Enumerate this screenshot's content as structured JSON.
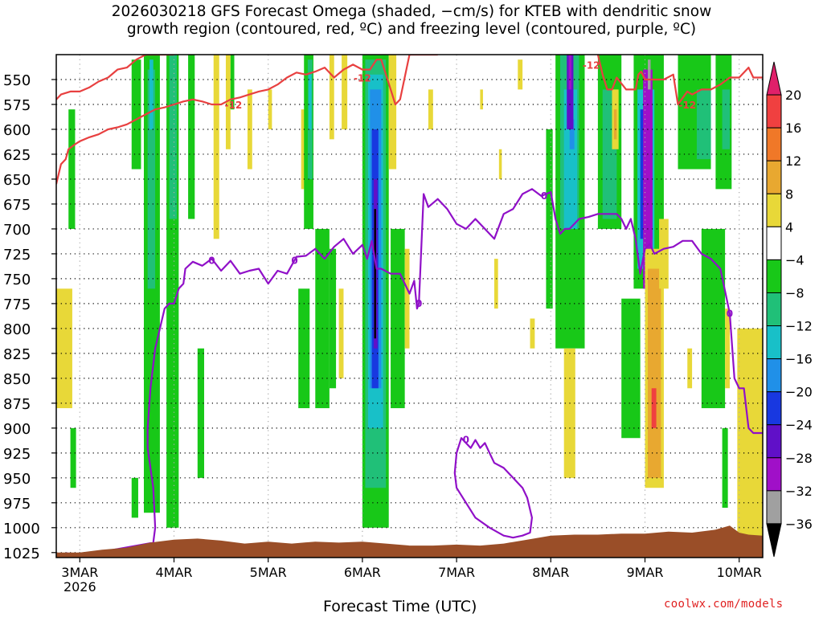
{
  "title": {
    "line1": "2026030218 GFS Forecast Omega (shaded, −cm/s) for KTEB with dendritic snow",
    "line2": "growth region (contoured, red, ºC) and freezing level (contoured, purple, ºC)"
  },
  "credit": "coolwx.com/models",
  "chart_data": {
    "type": "heatmap",
    "title": "2026030218 GFS Forecast Omega (shaded, −cm/s) for KTEB with dendritic snow growth region (contoured, red, ºC) and freezing level (contoured, purple, ºC)",
    "xlabel": "Forecast Time (UTC)",
    "ylabel": "",
    "x_ticks": [
      {
        "day": 3,
        "label": "3MAR",
        "sublabel": "2026"
      },
      {
        "day": 4,
        "label": "4MAR"
      },
      {
        "day": 5,
        "label": "5MAR"
      },
      {
        "day": 6,
        "label": "6MAR"
      },
      {
        "day": 7,
        "label": "7MAR"
      },
      {
        "day": 8,
        "label": "8MAR"
      },
      {
        "day": 9,
        "label": "9MAR"
      },
      {
        "day": 10,
        "label": "10MAR"
      }
    ],
    "xlim_days": [
      2.75,
      10.25
    ],
    "y_ticks": [
      550,
      575,
      600,
      625,
      650,
      675,
      700,
      725,
      750,
      775,
      800,
      825,
      850,
      875,
      900,
      925,
      950,
      975,
      1000,
      1025
    ],
    "ylim_hpa": [
      525,
      1030
    ],
    "colorbar": {
      "labels": [
        "20",
        "16",
        "12",
        "8",
        "4",
        "−4",
        "−8",
        "−12",
        "−16",
        "−20",
        "−24",
        "−28",
        "−32",
        "−36"
      ],
      "bins": [
        {
          "color": "#e0206a",
          "shape": "triangle-up",
          "range": ">20"
        },
        {
          "color": "#f04040",
          "range": "16 to 20"
        },
        {
          "color": "#f07828",
          "range": "12 to 16"
        },
        {
          "color": "#e8a830",
          "range": "8 to 12"
        },
        {
          "color": "#e8d838",
          "range": "4 to 8"
        },
        {
          "color": "#ffffff",
          "range": "-4 to 4"
        },
        {
          "color": "#18c818",
          "range": "-8 to -4"
        },
        {
          "color": "#20c078",
          "range": "-12 to -8"
        },
        {
          "color": "#18c0c8",
          "range": "-16 to -12"
        },
        {
          "color": "#2090e8",
          "range": "-20 to -16"
        },
        {
          "color": "#1838e0",
          "range": "-24 to -20"
        },
        {
          "color": "#6010c8",
          "range": "-28 to -24"
        },
        {
          "color": "#a010c8",
          "range": "-32 to -28"
        },
        {
          "color": "#a0a0a0",
          "range": "-36 to -32"
        },
        {
          "color": "#000000",
          "shape": "triangle-down",
          "range": "<-36"
        }
      ]
    },
    "contour_labels": {
      "dgz": "-12",
      "freezing": "0"
    },
    "shaded_regions": [
      {
        "value": -6,
        "t0": 2.88,
        "t1": 2.95,
        "p0": 580,
        "p1": 700
      },
      {
        "value": -6,
        "t0": 2.9,
        "t1": 2.96,
        "p0": 900,
        "p1": 960
      },
      {
        "value": 6,
        "t0": 2.75,
        "t1": 2.92,
        "p0": 760,
        "p1": 880
      },
      {
        "value": -6,
        "t0": 3.55,
        "t1": 3.65,
        "p0": 530,
        "p1": 640
      },
      {
        "value": -6,
        "t0": 3.55,
        "t1": 3.62,
        "p0": 950,
        "p1": 990
      },
      {
        "value": -6,
        "t0": 3.68,
        "t1": 3.85,
        "p0": 525,
        "p1": 985
      },
      {
        "value": -10,
        "t0": 3.72,
        "t1": 3.8,
        "p0": 540,
        "p1": 760
      },
      {
        "value": -14,
        "t0": 3.74,
        "t1": 3.78,
        "p0": 530,
        "p1": 600
      },
      {
        "value": -6,
        "t0": 3.92,
        "t1": 4.05,
        "p0": 525,
        "p1": 1000
      },
      {
        "value": -10,
        "t0": 3.95,
        "t1": 4.03,
        "p0": 525,
        "p1": 690
      },
      {
        "value": -6,
        "t0": 4.15,
        "t1": 4.22,
        "p0": 525,
        "p1": 690
      },
      {
        "value": -6,
        "t0": 4.25,
        "t1": 4.32,
        "p0": 820,
        "p1": 950
      },
      {
        "value": 6,
        "t0": 4.42,
        "t1": 4.48,
        "p0": 525,
        "p1": 710
      },
      {
        "value": 6,
        "t0": 4.55,
        "t1": 4.6,
        "p0": 525,
        "p1": 620
      },
      {
        "value": -6,
        "t0": 4.6,
        "t1": 4.64,
        "p0": 525,
        "p1": 580
      },
      {
        "value": 6,
        "t0": 4.78,
        "t1": 4.83,
        "p0": 560,
        "p1": 640
      },
      {
        "value": 6,
        "t0": 5.0,
        "t1": 5.04,
        "p0": 560,
        "p1": 600
      },
      {
        "value": -6,
        "t0": 5.32,
        "t1": 5.44,
        "p0": 760,
        "p1": 880
      },
      {
        "value": 6,
        "t0": 5.35,
        "t1": 5.4,
        "p0": 580,
        "p1": 660
      },
      {
        "value": -6,
        "t0": 5.38,
        "t1": 5.48,
        "p0": 525,
        "p1": 700
      },
      {
        "value": -10,
        "t0": 5.42,
        "t1": 5.47,
        "p0": 530,
        "p1": 650
      },
      {
        "value": -14,
        "t0": 5.43,
        "t1": 5.46,
        "p0": 545,
        "p1": 600
      },
      {
        "value": -6,
        "t0": 5.5,
        "t1": 5.65,
        "p0": 700,
        "p1": 880
      },
      {
        "value": -6,
        "t0": 5.65,
        "t1": 5.72,
        "p0": 720,
        "p1": 860
      },
      {
        "value": 6,
        "t0": 5.75,
        "t1": 5.8,
        "p0": 760,
        "p1": 850
      },
      {
        "value": 6,
        "t0": 5.65,
        "t1": 5.7,
        "p0": 525,
        "p1": 610
      },
      {
        "value": 6,
        "t0": 5.78,
        "t1": 5.84,
        "p0": 525,
        "p1": 600
      },
      {
        "value": -6,
        "t0": 6.0,
        "t1": 6.28,
        "p0": 525,
        "p1": 1000
      },
      {
        "value": -10,
        "t0": 6.03,
        "t1": 6.25,
        "p0": 530,
        "p1": 960
      },
      {
        "value": -14,
        "t0": 6.06,
        "t1": 6.22,
        "p0": 545,
        "p1": 900
      },
      {
        "value": -18,
        "t0": 6.08,
        "t1": 6.2,
        "p0": 560,
        "p1": 860
      },
      {
        "value": -22,
        "t0": 6.1,
        "t1": 6.17,
        "p0": 600,
        "p1": 860
      },
      {
        "value": -26,
        "t0": 6.12,
        "t1": 6.16,
        "p0": 650,
        "p1": 820
      },
      {
        "value": -38,
        "t0": 6.125,
        "t1": 6.145,
        "p0": 680,
        "p1": 810
      },
      {
        "value": 6,
        "t0": 6.28,
        "t1": 6.36,
        "p0": 525,
        "p1": 640
      },
      {
        "value": -6,
        "t0": 6.3,
        "t1": 6.45,
        "p0": 700,
        "p1": 880
      },
      {
        "value": 6,
        "t0": 6.45,
        "t1": 6.5,
        "p0": 720,
        "p1": 820
      },
      {
        "value": 6,
        "t0": 6.7,
        "t1": 6.75,
        "p0": 560,
        "p1": 600
      },
      {
        "value": 6,
        "t0": 7.25,
        "t1": 7.28,
        "p0": 560,
        "p1": 580
      },
      {
        "value": 6,
        "t0": 7.4,
        "t1": 7.44,
        "p0": 730,
        "p1": 780
      },
      {
        "value": 6,
        "t0": 7.45,
        "t1": 7.48,
        "p0": 620,
        "p1": 650
      },
      {
        "value": 6,
        "t0": 7.65,
        "t1": 7.7,
        "p0": 530,
        "p1": 560
      },
      {
        "value": 6,
        "t0": 7.78,
        "t1": 7.83,
        "p0": 790,
        "p1": 820
      },
      {
        "value": -6,
        "t0": 7.95,
        "t1": 8.02,
        "p0": 600,
        "p1": 780
      },
      {
        "value": -6,
        "t0": 8.05,
        "t1": 8.36,
        "p0": 525,
        "p1": 820
      },
      {
        "value": -10,
        "t0": 8.1,
        "t1": 8.3,
        "p0": 525,
        "p1": 700
      },
      {
        "value": -14,
        "t0": 8.14,
        "t1": 8.28,
        "p0": 560,
        "p1": 700
      },
      {
        "value": -18,
        "t0": 8.2,
        "t1": 8.25,
        "p0": 590,
        "p1": 620
      },
      {
        "value": -26,
        "t0": 8.17,
        "t1": 8.24,
        "p0": 525,
        "p1": 600
      },
      {
        "value": -30,
        "t0": 8.19,
        "t1": 8.22,
        "p0": 525,
        "p1": 560
      },
      {
        "value": 10,
        "t0": 8.15,
        "t1": 8.25,
        "p0": 840,
        "p1": 930
      },
      {
        "value": 6,
        "t0": 8.14,
        "t1": 8.26,
        "p0": 820,
        "p1": 950
      },
      {
        "value": -6,
        "t0": 8.5,
        "t1": 8.75,
        "p0": 525,
        "p1": 700
      },
      {
        "value": -10,
        "t0": 8.55,
        "t1": 8.7,
        "p0": 560,
        "p1": 690
      },
      {
        "value": 6,
        "t0": 8.65,
        "t1": 8.72,
        "p0": 560,
        "p1": 620
      },
      {
        "value": 10,
        "t0": 8.67,
        "t1": 8.7,
        "p0": 580,
        "p1": 610
      },
      {
        "value": -6,
        "t0": 8.75,
        "t1": 8.95,
        "p0": 770,
        "p1": 910
      },
      {
        "value": -6,
        "t0": 8.88,
        "t1": 9.2,
        "p0": 525,
        "p1": 760
      },
      {
        "value": -14,
        "t0": 8.92,
        "t1": 9.1,
        "p0": 560,
        "p1": 740
      },
      {
        "value": -22,
        "t0": 8.95,
        "t1": 9.08,
        "p0": 580,
        "p1": 710
      },
      {
        "value": -30,
        "t0": 8.98,
        "t1": 9.08,
        "p0": 540,
        "p1": 760
      },
      {
        "value": -34,
        "t0": 9.03,
        "t1": 9.06,
        "p0": 530,
        "p1": 560
      },
      {
        "value": 6,
        "t0": 9.0,
        "t1": 9.2,
        "p0": 720,
        "p1": 960
      },
      {
        "value": 10,
        "t0": 9.03,
        "t1": 9.17,
        "p0": 740,
        "p1": 950
      },
      {
        "value": 18,
        "t0": 9.07,
        "t1": 9.12,
        "p0": 860,
        "p1": 900
      },
      {
        "value": 6,
        "t0": 9.15,
        "t1": 9.25,
        "p0": 690,
        "p1": 760
      },
      {
        "value": 6,
        "t0": 9.45,
        "t1": 9.5,
        "p0": 820,
        "p1": 860
      },
      {
        "value": -6,
        "t0": 9.35,
        "t1": 9.7,
        "p0": 525,
        "p1": 640
      },
      {
        "value": -10,
        "t0": 9.55,
        "t1": 9.7,
        "p0": 560,
        "p1": 630
      },
      {
        "value": -6,
        "t0": 9.6,
        "t1": 9.85,
        "p0": 700,
        "p1": 880
      },
      {
        "value": -6,
        "t0": 9.75,
        "t1": 9.92,
        "p0": 525,
        "p1": 660
      },
      {
        "value": -10,
        "t0": 9.82,
        "t1": 9.9,
        "p0": 560,
        "p1": 620
      },
      {
        "value": -6,
        "t0": 9.82,
        "t1": 9.88,
        "p0": 900,
        "p1": 980
      },
      {
        "value": 6,
        "t0": 9.98,
        "t1": 10.25,
        "p0": 800,
        "p1": 1010
      },
      {
        "value": 6,
        "t0": 9.85,
        "t1": 9.9,
        "p0": 780,
        "p1": 860
      }
    ],
    "dgz_contour_-12C": {
      "lower": {
        "t": [
          2.75,
          2.8,
          2.85,
          2.88,
          2.95,
          3.0,
          3.1,
          3.2,
          3.3,
          3.4,
          3.5,
          3.6,
          3.7,
          3.8,
          3.9,
          4.0,
          4.1,
          4.2,
          4.3,
          4.4,
          4.5,
          4.6,
          4.7,
          4.8,
          4.9,
          5.0,
          5.1,
          5.2,
          5.3,
          5.4,
          5.5,
          5.6,
          5.7,
          5.8,
          5.9,
          6.0,
          6.08,
          6.15,
          6.2,
          6.25,
          6.3,
          6.35,
          6.4,
          6.5,
          6.6,
          6.7,
          6.8
        ],
        "p": [
          655,
          635,
          630,
          620,
          615,
          612,
          608,
          605,
          600,
          598,
          595,
          590,
          585,
          580,
          578,
          575,
          572,
          570,
          572,
          575,
          575,
          570,
          568,
          565,
          562,
          560,
          555,
          548,
          543,
          545,
          542,
          538,
          548,
          540,
          535,
          540,
          540,
          530,
          530,
          545,
          560,
          575,
          570,
          525,
          525,
          525,
          525
        ]
      },
      "upper": {
        "t": [
          2.75,
          2.8,
          2.9,
          3.0,
          3.1,
          3.2,
          3.3,
          3.4,
          3.5,
          3.6,
          3.7,
          3.8,
          3.9,
          4.0
        ],
        "p": [
          570,
          565,
          562,
          562,
          558,
          552,
          548,
          540,
          538,
          530,
          525,
          525,
          525,
          525
        ]
      },
      "late": {
        "t": [
          8.5,
          8.55,
          8.6,
          8.65,
          8.7,
          8.8,
          8.9,
          8.93,
          8.96,
          9.0,
          9.05,
          9.1,
          9.2,
          9.3,
          9.35,
          9.45,
          9.5,
          9.6,
          9.7,
          9.8,
          9.9,
          10.0,
          10.1,
          10.15,
          10.25
        ],
        "p": [
          525,
          545,
          560,
          560,
          548,
          560,
          560,
          545,
          542,
          550,
          550,
          550,
          550,
          545,
          575,
          562,
          565,
          560,
          560,
          555,
          548,
          548,
          538,
          548,
          548
        ]
      }
    },
    "freezing_contour_0C": {
      "main": {
        "t": [
          2.86,
          2.88,
          2.9,
          3.78,
          3.8,
          3.79,
          3.78,
          3.75,
          3.72,
          3.72,
          3.75,
          3.8,
          3.9,
          3.95,
          4.0,
          4.05,
          4.1,
          4.12,
          4.2,
          4.3,
          4.4,
          4.5,
          4.6,
          4.7,
          4.8,
          4.9,
          5.0,
          5.1,
          5.2,
          5.3,
          5.4,
          5.5,
          5.6,
          5.7,
          5.8,
          5.9,
          6.0,
          6.05,
          6.1,
          6.15,
          6.2,
          6.3,
          6.4,
          6.5,
          6.55,
          6.58,
          6.6,
          6.65,
          6.7,
          6.8,
          6.9,
          7.0,
          7.1,
          7.2,
          7.3,
          7.4,
          7.5,
          7.6,
          7.7,
          7.8,
          7.9,
          7.95,
          8.0,
          8.05,
          8.1,
          8.15,
          8.2,
          8.3,
          8.4,
          8.5,
          8.6,
          8.7,
          8.75,
          8.8,
          8.85,
          8.9,
          8.95,
          9.0,
          9.05,
          9.1,
          9.2,
          9.3,
          9.4,
          9.5,
          9.6,
          9.7,
          9.8,
          9.9,
          9.95,
          10.0,
          10.05,
          10.1,
          10.15,
          10.25
        ],
        "p": [
          1025,
          1028,
          1030,
          1015,
          1000,
          980,
          960,
          940,
          920,
          900,
          860,
          820,
          780,
          775,
          775,
          760,
          755,
          740,
          733,
          737,
          730,
          742,
          732,
          745,
          742,
          740,
          755,
          742,
          745,
          728,
          727,
          720,
          730,
          718,
          710,
          725,
          716,
          730,
          712,
          740,
          740,
          745,
          745,
          765,
          752,
          780,
          775,
          665,
          678,
          670,
          680,
          695,
          700,
          690,
          700,
          710,
          685,
          680,
          665,
          660,
          667,
          665,
          663,
          690,
          705,
          700,
          700,
          690,
          688,
          685,
          685,
          685,
          690,
          700,
          690,
          710,
          745,
          720,
          715,
          725,
          720,
          718,
          712,
          712,
          725,
          730,
          740,
          785,
          850,
          860,
          860,
          900,
          905,
          905
        ]
      },
      "loop": {
        "t": [
          7.0,
          7.05,
          7.1,
          7.15,
          7.2,
          7.25,
          7.3,
          7.35,
          7.4,
          7.5,
          7.6,
          7.7,
          7.75,
          7.8,
          7.78,
          7.7,
          7.6,
          7.5,
          7.35,
          7.2,
          7.1,
          7.0,
          6.98,
          7.0
        ],
        "p": [
          925,
          910,
          915,
          920,
          912,
          920,
          915,
          925,
          935,
          940,
          950,
          960,
          970,
          990,
          1005,
          1008,
          1010,
          1008,
          1000,
          990,
          975,
          960,
          945,
          925
        ]
      }
    },
    "terrain_top_hpa": {
      "t": [
        2.75,
        3.0,
        3.25,
        3.5,
        3.75,
        4.0,
        4.25,
        4.5,
        4.75,
        5.0,
        5.25,
        5.5,
        5.75,
        6.0,
        6.25,
        6.5,
        6.75,
        7.0,
        7.25,
        7.5,
        7.75,
        8.0,
        8.25,
        8.5,
        8.75,
        9.0,
        9.25,
        9.5,
        9.75,
        9.9,
        10.0,
        10.1,
        10.25
      ],
      "p": [
        1025,
        1025,
        1022,
        1020,
        1015,
        1012,
        1011,
        1013,
        1016,
        1014,
        1016,
        1014,
        1015,
        1014,
        1016,
        1018,
        1018,
        1017,
        1018,
        1016,
        1012,
        1008,
        1007,
        1007,
        1006,
        1006,
        1004,
        1005,
        1002,
        998,
        1005,
        1007,
        1008
      ]
    }
  }
}
